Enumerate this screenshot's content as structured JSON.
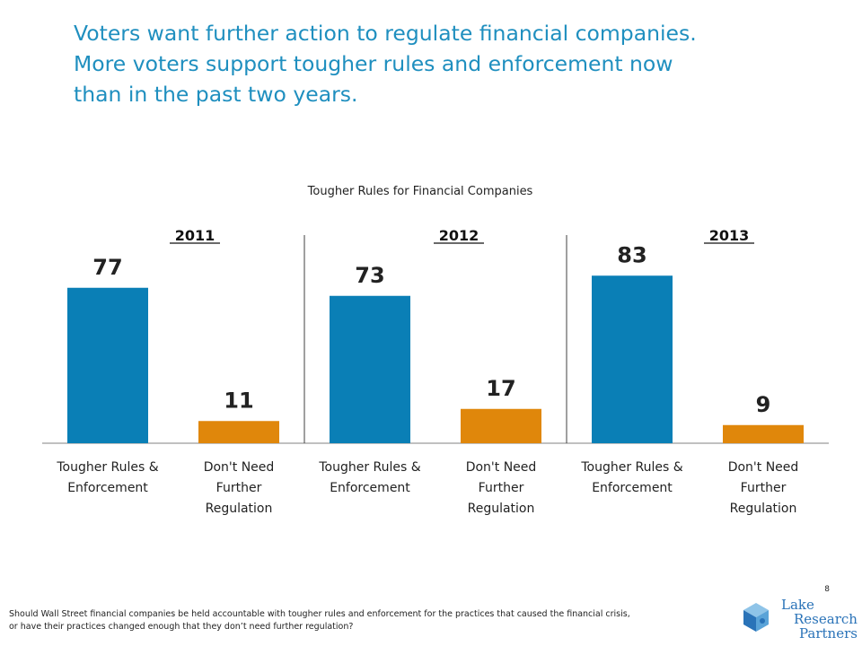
{
  "title_lines": [
    "Voters want further action to regulate financial companies.",
    "More voters support tougher rules and enforcement now",
    "than in the past two years."
  ],
  "chart_data": {
    "type": "bar",
    "title": "Tougher Rules for Financial Companies",
    "categories": [
      "Tougher Rules & Enforcement",
      "Don't Need Further Regulation"
    ],
    "category_lines": [
      [
        "Tougher Rules &",
        "Enforcement"
      ],
      [
        "Don't Need",
        "Further",
        "Regulation"
      ]
    ],
    "groups": [
      {
        "name": "2011",
        "values": [
          77,
          11
        ]
      },
      {
        "name": "2012",
        "values": [
          73,
          17
        ]
      },
      {
        "name": "2013",
        "values": [
          83,
          9
        ]
      }
    ],
    "colors": [
      "#0a7fb6",
      "#e0870b"
    ],
    "grid": false,
    "legend": "none"
  },
  "footnote_lines": [
    "Should Wall Street financial companies be held accountable with tougher rules and enforcement for the practices that caused the financial crisis,",
    "or have their practices changed enough that they don’t need further regulation?"
  ],
  "page_number": "8",
  "logo_lines": [
    "Lake",
    "Research",
    "Partners"
  ]
}
